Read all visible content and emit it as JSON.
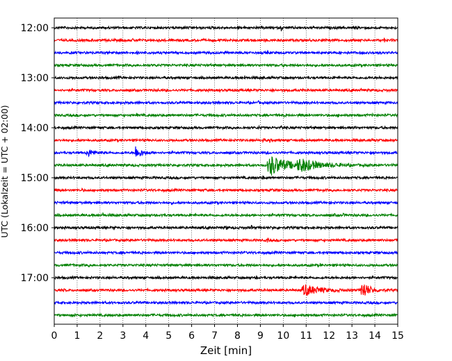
{
  "chart_data": {
    "type": "line",
    "title": "",
    "xlabel": "Zeit  [min]",
    "ylabel": "UTC (Lokalzeit = UTC + 02:00)",
    "xlim": [
      0,
      15
    ],
    "x_ticks": [
      "0",
      "1",
      "2",
      "3",
      "4",
      "5",
      "6",
      "7",
      "8",
      "9",
      "10",
      "11",
      "12",
      "13",
      "14",
      "15"
    ],
    "y_ticks": [
      {
        "label": "12:00",
        "row": 0
      },
      {
        "label": "13:00",
        "row": 4
      },
      {
        "label": "14:00",
        "row": 8
      },
      {
        "label": "15:00",
        "row": 12
      },
      {
        "label": "16:00",
        "row": 16
      },
      {
        "label": "17:00",
        "row": 20
      }
    ],
    "rows_per_hour": 4,
    "minutes_per_row": 15,
    "row_colors": [
      "#000000",
      "#ff0000",
      "#0000ff",
      "#008000"
    ],
    "x_grid": "dotted",
    "traces": [
      {
        "start": "12:00",
        "events": [
          [
            0.15,
            0.5
          ],
          [
            8,
            0.25
          ],
          [
            9.9,
            0.6
          ],
          [
            13.2,
            0.4
          ],
          [
            13.5,
            0.35
          ]
        ]
      },
      {
        "start": "12:15",
        "events": [
          [
            2.9,
            0.25
          ],
          [
            3.4,
            0.25
          ],
          [
            8.6,
            0.3
          ],
          [
            9.2,
            0.4
          ],
          [
            14.4,
            0.4
          ]
        ]
      },
      {
        "start": "12:30",
        "events": [
          [
            1.1,
            0.25
          ],
          [
            2.5,
            0.25
          ],
          [
            3.6,
            0.25
          ],
          [
            4.1,
            0.3
          ],
          [
            9.3,
            0.3
          ],
          [
            14.1,
            0.3
          ]
        ]
      },
      {
        "start": "12:45",
        "events": [
          [
            4.4,
            0.5
          ],
          [
            10,
            0.3
          ],
          [
            14.3,
            0.3
          ]
        ]
      },
      {
        "start": "13:00",
        "events": [
          [
            2.8,
            0.25
          ],
          [
            8.3,
            0.45
          ],
          [
            9.1,
            0.3
          ]
        ]
      },
      {
        "start": "13:15",
        "events": [
          [
            4.5,
            0.25
          ],
          [
            9.5,
            0.45
          ],
          [
            10.8,
            0.3
          ],
          [
            13.4,
            0.4
          ]
        ]
      },
      {
        "start": "13:30",
        "events": [
          [
            3.6,
            0.3
          ],
          [
            8.9,
            0.3
          ]
        ]
      },
      {
        "start": "13:45",
        "events": [
          [
            3.6,
            0.3
          ],
          [
            10,
            0.3
          ],
          [
            12.4,
            0.25
          ],
          [
            13.9,
            0.3
          ]
        ]
      },
      {
        "start": "14:00",
        "events": [
          [
            4.3,
            0.3
          ],
          [
            8.9,
            0.5
          ],
          [
            9.9,
            0.4
          ],
          [
            13.1,
            0.5
          ]
        ]
      },
      {
        "start": "14:15",
        "events": [
          [
            9.1,
            0.6
          ],
          [
            9.4,
            0.4
          ],
          [
            14.0,
            0.3
          ]
        ]
      },
      {
        "start": "14:30",
        "events": [
          [
            1.4,
            0.7,
            0.5
          ],
          [
            3.5,
            1.2,
            0.5
          ],
          [
            9.3,
            0.4
          ],
          [
            13.8,
            0.4
          ]
        ]
      },
      {
        "start": "14:45",
        "events": [
          [
            9.3,
            1.8,
            1.5
          ],
          [
            10.6,
            1.0,
            1.6
          ],
          [
            12.3,
            0.4
          ]
        ]
      },
      {
        "start": "15:00",
        "events": [
          [
            4.3,
            0.3
          ],
          [
            9.1,
            0.3
          ]
        ]
      },
      {
        "start": "15:15",
        "events": [
          [
            1.2,
            0.25
          ],
          [
            6.6,
            0.25
          ],
          [
            9.5,
            0.25
          ]
        ]
      },
      {
        "start": "15:30",
        "events": [
          [
            0.35,
            0.4
          ],
          [
            5.1,
            0.25
          ],
          [
            12.0,
            0.3
          ]
        ]
      },
      {
        "start": "15:45",
        "events": [
          [
            2.1,
            0.7
          ],
          [
            4.7,
            0.4
          ],
          [
            9.8,
            0.3
          ],
          [
            12.2,
            0.3
          ],
          [
            12.6,
            0.3
          ]
        ]
      },
      {
        "start": "16:00",
        "events": [
          [
            2.6,
            0.3
          ],
          [
            7.5,
            0.4
          ],
          [
            8.6,
            0.4
          ],
          [
            9.5,
            0.3
          ]
        ]
      },
      {
        "start": "16:15",
        "events": [
          [
            9.3,
            0.6
          ],
          [
            13.7,
            0.3
          ]
        ]
      },
      {
        "start": "16:30",
        "events": [
          [
            2.9,
            0.25
          ],
          [
            11.9,
            0.25
          ]
        ]
      },
      {
        "start": "16:45",
        "events": [
          [
            1.5,
            0.25
          ],
          [
            5.8,
            0.3
          ],
          [
            11.6,
            0.25
          ]
        ]
      },
      {
        "start": "17:00",
        "events": [
          [
            8.8,
            0.45
          ]
        ]
      },
      {
        "start": "17:15",
        "events": [
          [
            10.8,
            1.0,
            1.3
          ],
          [
            13.4,
            1.6,
            0.6
          ],
          [
            0.4,
            0.3
          ]
        ]
      },
      {
        "start": "17:30",
        "events": [
          [
            2.5,
            0.2
          ],
          [
            12.2,
            0.2
          ]
        ]
      },
      {
        "start": "17:45",
        "events": [
          [
            0.9,
            0.2
          ],
          [
            10.5,
            0.2
          ]
        ]
      }
    ]
  }
}
